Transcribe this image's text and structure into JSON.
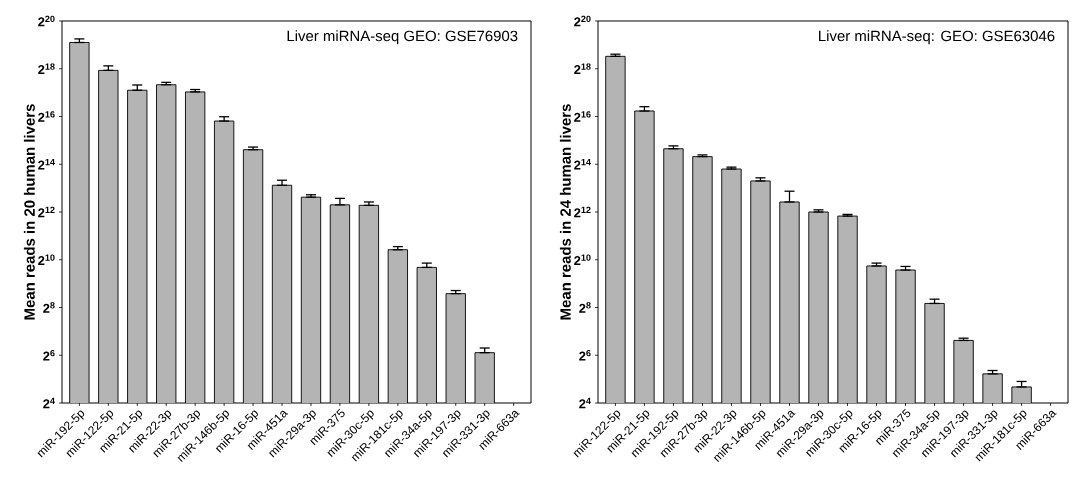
{
  "chart_data": [
    {
      "type": "bar",
      "ylabel": "Mean reads in 20 human livers",
      "annotations": [
        "Liver miRNA-seq GEO: GSE76903"
      ],
      "categories": [
        "miR-192-5p",
        "miR-122-5p",
        "miR-21-5p",
        "miR-22-3p",
        "miR-27b-3p",
        "miR-146b-5p",
        "miR-16-5p",
        "miR-451a",
        "miR-29a-3p",
        "miR-375",
        "miR-30c-5p",
        "miR-181c-5p",
        "miR-34a-5p",
        "miR-197-3p",
        "miR-331-3p",
        "miR-663a"
      ],
      "values": [
        562000,
        250000,
        140500,
        164800,
        133800,
        57440,
        25000,
        8900,
        6300,
        5040,
        4970,
        1370,
        820,
        383,
        69,
        null
      ],
      "errors": [
        [
          562000,
          623500
        ],
        [
          250000,
          285000
        ],
        [
          140500,
          163600
        ],
        [
          164800,
          176600
        ],
        [
          133800,
          143400
        ],
        [
          57440,
          65100
        ],
        [
          25000,
          26990
        ],
        [
          8900,
          10300
        ],
        [
          6300,
          6750
        ],
        [
          5040,
          6080
        ],
        [
          4970,
          5480
        ],
        [
          1370,
          1500
        ],
        [
          820,
          929
        ],
        [
          383,
          419
        ],
        [
          69,
          79
        ],
        null
      ],
      "color": "#b4b4b4",
      "log": "y",
      "ylim": [
        16,
        1048576
      ],
      "yticks": [
        {
          "value": 16,
          "label": "2$^{4}$"
        },
        {
          "value": 64,
          "label": "2$^{6}$"
        },
        {
          "value": 256,
          "label": "2$^{8}$"
        },
        {
          "value": 1024,
          "label": "2$^{10}$"
        },
        {
          "value": 4096,
          "label": "2$^{12}$"
        },
        {
          "value": 16384,
          "label": "2$^{14}$"
        },
        {
          "value": 65536,
          "label": "2$^{16}$"
        },
        {
          "value": 262144,
          "label": "2$^{18}$"
        },
        {
          "value": 1048576,
          "label": "2$^{20}$"
        }
      ]
    },
    {
      "type": "bar",
      "ylabel": "Mean reads in 24 human livers",
      "annotations": [
        "Liver miRNA-seq: GEO: GSE63046"
      ],
      "categories": [
        "miR-122-5p",
        "miR-21-5p",
        "miR-192-5p",
        "miR-27b-3p",
        "miR-22-3p",
        "miR-146b-5p",
        "miR-451a",
        "miR-29a-3p",
        "miR-30c-5p",
        "miR-16-5p",
        "miR-375",
        "miR-34a-5p",
        "miR-197-3p",
        "miR-331-3p",
        "miR-181c-5p",
        "miR-663a"
      ],
      "values": [
        375900,
        76900,
        25700,
        20450,
        14260,
        10090,
        5480,
        4096,
        3640,
        855,
        760,
        288,
        98.4,
        37.3,
        25.5,
        null
      ],
      "errors": [
        [
          375900,
          400000
        ],
        [
          76900,
          87100
        ],
        [
          25700,
          27940
        ],
        [
          20450,
          21480
        ],
        [
          14260,
          15070
        ],
        [
          10090,
          11040
        ],
        [
          5480,
          7490
        ],
        [
          4096,
          4360
        ],
        [
          3640,
          3820
        ],
        [
          855,
          929
        ],
        [
          760,
          843
        ],
        [
          288,
          326
        ],
        [
          98.4,
          105
        ],
        [
          37.3,
          41.1
        ],
        [
          25.5,
          29.9
        ],
        null
      ],
      "color": "#b4b4b4",
      "log": "y",
      "ylim": [
        16,
        1048576
      ],
      "yticks": [
        {
          "value": 16,
          "label": "2$^{4}$"
        },
        {
          "value": 64,
          "label": "2$^{6}$"
        },
        {
          "value": 256,
          "label": "2$^{8}$"
        },
        {
          "value": 1024,
          "label": "2$^{10}$"
        },
        {
          "value": 4096,
          "label": "2$^{12}$"
        },
        {
          "value": 16384,
          "label": "2$^{14}$"
        },
        {
          "value": 65536,
          "label": "2$^{16}$"
        },
        {
          "value": 262144,
          "label": "2$^{18}$"
        },
        {
          "value": 1048576,
          "label": "2$^{20}$"
        }
      ]
    }
  ]
}
